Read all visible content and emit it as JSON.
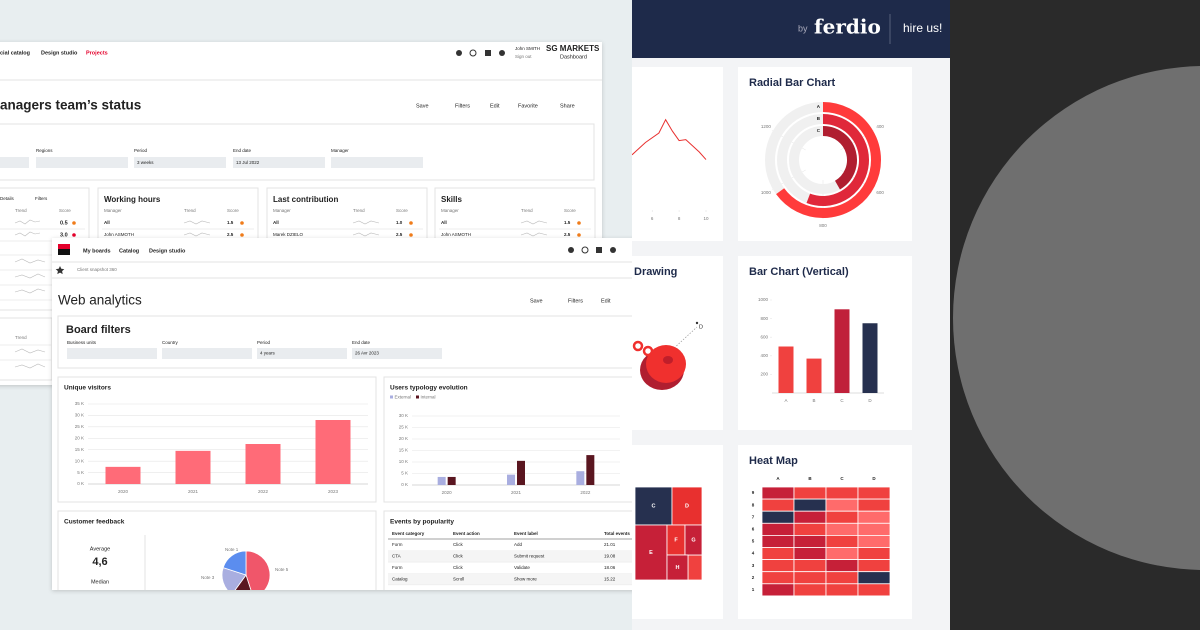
{
  "back_window": {
    "nav": [
      "cial catalog",
      "Design studio",
      "Projects"
    ],
    "user": "John SMITH",
    "sign_out": "Sign out",
    "brand": "SG MARKETS",
    "brand_sub": "Dashboard",
    "title": "anagers team’s status",
    "toolbar": [
      "Save",
      "Filters",
      "Edit",
      "Favorite",
      "Share"
    ],
    "filters": [
      {
        "label": "Regions"
      },
      {
        "label": "Period",
        "value": "3 weeks"
      },
      {
        "label": "End date",
        "value": "13 Jul 2022"
      },
      {
        "label": "Manager"
      }
    ],
    "first_card": {
      "toolbar": [
        "Details",
        "Filters"
      ],
      "columns": [
        "Trend",
        "Score"
      ],
      "scores": [
        "0.5",
        "3.0"
      ]
    },
    "cards": [
      {
        "title": "Working hours",
        "columns": [
          "Manager",
          "Trend",
          "Score"
        ],
        "rows": [
          [
            "All",
            "1.5"
          ],
          [
            "John ASMOTH",
            "2.5"
          ]
        ]
      },
      {
        "title": "Last contribution",
        "columns": [
          "Manager",
          "Trend",
          "Score"
        ],
        "rows": [
          [
            "All",
            "1.0"
          ],
          [
            "Marek DZIELO",
            "2.5"
          ]
        ]
      },
      {
        "title": "Skills",
        "columns": [
          "Manager",
          "Trend",
          "Score"
        ],
        "rows": [
          [
            "All",
            "1.5"
          ],
          [
            "John ASMOTH",
            "2.5"
          ]
        ]
      }
    ],
    "lower_card_column": "Trend"
  },
  "front_window": {
    "nav": [
      "My boards",
      "Catalog",
      "Design studio"
    ],
    "breadcrumb": "Client snapshot 360",
    "title": "Web analytics",
    "toolbar": [
      "Save",
      "Filters",
      "Edit"
    ],
    "board_filters": {
      "title": "Board filters",
      "fields": [
        {
          "label": "Business units"
        },
        {
          "label": "Country"
        },
        {
          "label": "Period",
          "value": "4 years"
        },
        {
          "label": "End date",
          "value": "26 Avr 2023"
        }
      ]
    },
    "unique_visitors": {
      "type": "bar",
      "title": "Unique visitors",
      "categories": [
        "2020",
        "2021",
        "2022",
        "2023"
      ],
      "values": [
        7500,
        14500,
        17500,
        28000
      ],
      "color": "#ff6b78",
      "ylim": [
        0,
        35000
      ],
      "yticks": [
        {
          "value": 0,
          "label": "0 K"
        },
        {
          "value": 5000,
          "label": "5 K"
        },
        {
          "value": 10000,
          "label": "10 K"
        },
        {
          "value": 15000,
          "label": "15 K"
        },
        {
          "value": 20000,
          "label": "20 K"
        },
        {
          "value": 25000,
          "label": "25 K"
        },
        {
          "value": 30000,
          "label": "30 K"
        },
        {
          "value": 35000,
          "label": "35 K"
        }
      ],
      "grid": true
    },
    "users_typology": {
      "type": "bar",
      "title": "Users typology evolution",
      "categories": [
        "2020",
        "2021",
        "2022"
      ],
      "series": [
        {
          "name": "External",
          "color": "#a9aee0",
          "values": [
            3500,
            4500,
            6000
          ]
        },
        {
          "name": "Internal",
          "color": "#5a1620",
          "values": [
            3500,
            10500,
            13000
          ]
        }
      ],
      "ylim": [
        0,
        30000
      ],
      "yticks": [
        {
          "value": 0,
          "label": "0 K"
        },
        {
          "value": 5000,
          "label": "5 K"
        },
        {
          "value": 10000,
          "label": "10 K"
        },
        {
          "value": 15000,
          "label": "15 K"
        },
        {
          "value": 20000,
          "label": "20 K"
        },
        {
          "value": 25000,
          "label": "25 K"
        },
        {
          "value": 30000,
          "label": "30 K"
        }
      ],
      "grid": true
    },
    "customer_feedback": {
      "title": "Customer feedback",
      "average_label": "Average",
      "average": "4,6",
      "median_label": "Median",
      "chart": {
        "type": "pie",
        "categories": [
          "Note 5",
          null,
          "Note 3",
          "Note 1"
        ],
        "values": [
          45,
          15,
          20,
          20
        ],
        "colors": [
          "#f0566a",
          "#5a1620",
          "#a9aee0",
          "#5b8def"
        ]
      }
    },
    "events": {
      "title": "Events by popularity",
      "columns": [
        "Event category",
        "Event action",
        "Event label",
        "Total events"
      ],
      "rows": [
        [
          "Form",
          "Click",
          "Add",
          "21.01"
        ],
        [
          "CTA",
          "Click",
          "Submit request",
          "19.08"
        ],
        [
          "Form",
          "Click",
          "Validate",
          "18.06"
        ],
        [
          "Catalog",
          "Scroll",
          "Show more",
          "15.22"
        ]
      ]
    }
  },
  "ferdio": {
    "by": "by",
    "brand": "ferdio",
    "cta": "hire us!",
    "line_chart": {
      "type": "line",
      "x": [
        4.5,
        5.5,
        6.5,
        7,
        7.5,
        8,
        8.5,
        9.5,
        10
      ],
      "values": [
        37,
        50,
        60,
        74,
        62,
        52,
        53,
        40,
        32
      ],
      "color": "#e8302f",
      "xlim": [
        4.5,
        10
      ],
      "ylim": [
        0,
        100
      ],
      "xticks": [
        6,
        8,
        10
      ]
    },
    "radial": {
      "type": "radial_bar",
      "title": "Radial Bar Chart",
      "categories": [
        "A",
        "B",
        "C"
      ],
      "values": [
        980,
        870,
        700
      ],
      "colors": [
        "#ff3b3b",
        "#e0283a",
        "#b01e30"
      ],
      "ylim": [
        200,
        1400
      ],
      "yticks": [
        400,
        600,
        800,
        1000,
        1200
      ]
    },
    "drawing": {
      "title": "Drawing",
      "label": "D"
    },
    "bar": {
      "type": "bar",
      "title": "Bar Chart (Vertical)",
      "categories": [
        "A",
        "B",
        "C",
        "D"
      ],
      "values": [
        500,
        370,
        900,
        750
      ],
      "colors": [
        "#f0413f",
        "#f0413f",
        "#c0203a",
        "#26304f"
      ],
      "ylim": [
        0,
        1000
      ],
      "yticks": [
        200,
        400,
        600,
        800,
        1000
      ],
      "grid": false
    },
    "treemap": {
      "labels": [
        "C",
        "D",
        "E",
        "F",
        "G",
        "H"
      ]
    },
    "heatmap": {
      "type": "heatmap",
      "title": "Heat Map",
      "columns": [
        "A",
        "B",
        "C",
        "D"
      ],
      "rows": [
        "9",
        "8",
        "7",
        "6",
        "5",
        "4",
        "3",
        "2",
        "1"
      ],
      "values": [
        [
          3,
          2,
          2,
          2
        ],
        [
          2,
          4,
          1,
          2
        ],
        [
          4,
          3,
          2,
          1
        ],
        [
          3,
          2,
          1,
          1
        ],
        [
          3,
          3,
          2,
          1
        ],
        [
          2,
          3,
          1,
          2
        ],
        [
          2,
          2,
          3,
          2
        ],
        [
          2,
          2,
          2,
          4
        ],
        [
          3,
          2,
          2,
          2
        ]
      ],
      "colors": [
        "#ff6b6b",
        "#f0413f",
        "#c62038",
        "#26304f"
      ]
    }
  }
}
